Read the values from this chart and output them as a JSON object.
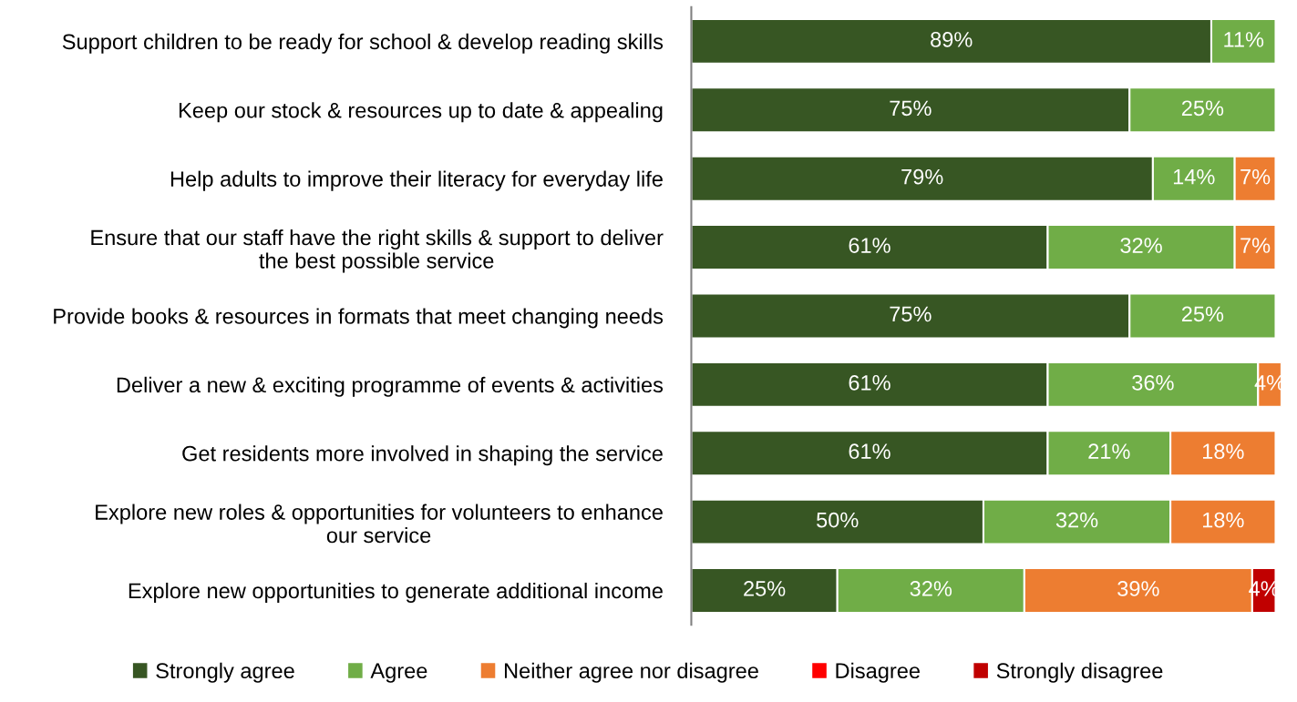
{
  "chart_data": {
    "type": "bar",
    "orientation": "horizontal",
    "stacked": true,
    "legend": "bottom",
    "categories": [
      "Support children to be ready for school & develop reading skills",
      "Keep our stock & resources up to date & appealing",
      "Help adults to improve their literacy for everyday life",
      "Ensure that our staff have the right skills & support to deliver\nthe best possible service",
      "Provide books & resources in formats that meet changing needs",
      "Deliver a new & exciting programme of events & activities",
      "Get residents more involved in shaping the service",
      "Explore new roles & opportunities for volunteers to enhance\nour service",
      "Explore new opportunities to generate additional income"
    ],
    "series": [
      {
        "name": "Strongly agree",
        "color": "#375623",
        "values": [
          89,
          75,
          79,
          61,
          75,
          61,
          61,
          50,
          25
        ],
        "value_labels": [
          "89%",
          "75%",
          "79%",
          "61%",
          "75%",
          "61%",
          "61%",
          "50%",
          "25%"
        ]
      },
      {
        "name": "Agree",
        "color": "#70ad47",
        "values": [
          11,
          25,
          14,
          32,
          25,
          36,
          21,
          32,
          32
        ],
        "value_labels": [
          "11%",
          "25%",
          "14%",
          "32%",
          "25%",
          "36%",
          "21%",
          "32%",
          "32%"
        ]
      },
      {
        "name": "Neither agree nor disagree",
        "color": "#ed7d31",
        "values": [
          null,
          null,
          7,
          7,
          null,
          4,
          18,
          18,
          39
        ],
        "value_labels": [
          null,
          null,
          "7%",
          "7%",
          null,
          "4%",
          "18%",
          "18%",
          "39%"
        ]
      },
      {
        "name": "Disagree",
        "color": "#ff0000",
        "values": [
          null,
          null,
          null,
          null,
          null,
          null,
          null,
          null,
          null
        ],
        "value_labels": [
          null,
          null,
          null,
          null,
          null,
          null,
          null,
          null,
          null
        ]
      },
      {
        "name": "Strongly disagree",
        "color": "#c00000",
        "values": [
          null,
          null,
          null,
          null,
          null,
          null,
          null,
          null,
          4
        ],
        "value_labels": [
          null,
          null,
          null,
          null,
          null,
          null,
          null,
          null,
          "4%"
        ]
      }
    ]
  }
}
